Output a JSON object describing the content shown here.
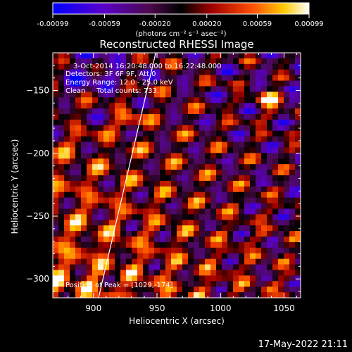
{
  "colorbar": {
    "ticks": [
      "-0.00099",
      "-0.00059",
      "-0.00020",
      "0.00020",
      "0.00059",
      "0.00099"
    ],
    "tick_values": [
      -0.00099,
      -0.00059,
      -0.0002,
      0.0002,
      0.00059,
      0.00099
    ],
    "range": [
      -0.00099,
      0.00099
    ],
    "unit_label": "(photons cm⁻² s⁻¹ asec⁻²)"
  },
  "chart_data": {
    "type": "heatmap",
    "title": "Reconstructed RHESSI Image",
    "xlabel": "Heliocentric X (arcsec)",
    "ylabel": "Heliocentric Y (arcsec)",
    "xlim": [
      868,
      1063
    ],
    "ylim": [
      -315,
      -120
    ],
    "xticks": [
      900,
      950,
      1000,
      1050
    ],
    "yticks": [
      -150,
      -200,
      -250,
      -300
    ],
    "annotations": [
      "3-Oct-2014 16:20:48.000 to 16:22:48.000",
      "Detectors: 3F 6F 9F, Att 0",
      "Energy Range: 12.0 - 25.0 keV",
      "Clean     Total counts: 733.",
      "Position of Peak = [1029,-174]"
    ],
    "limb_line": {
      "x": [
        904,
        949
      ],
      "y": [
        -315,
        -120
      ]
    },
    "colors": {
      "low": "#0000ff",
      "mid": "#000000",
      "high": "#ffffff"
    }
  },
  "footer": {
    "timestamp": "17-May-2022 21:11"
  }
}
